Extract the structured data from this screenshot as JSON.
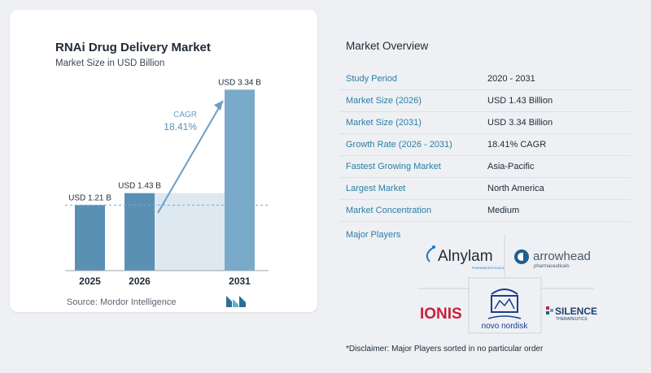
{
  "chart_data": {
    "type": "bar",
    "title": "RNAi Drug Delivery Market",
    "subtitle": "Market Size in USD Billion",
    "categories": [
      "2025",
      "2026",
      "2031"
    ],
    "values": [
      1.21,
      1.43,
      3.34
    ],
    "data_labels": [
      "USD 1.21 B",
      "USD 1.43 B",
      "USD 3.34 B"
    ],
    "cagr_label": "CAGR",
    "cagr_value": "18.41%",
    "ylim": [
      0,
      3.6
    ],
    "grid": false,
    "colors": {
      "bar_dark": "#5a90b3",
      "bar_light": "#7aaac9",
      "shade": "#dde8f1",
      "arrow": "#6b9fc4"
    }
  },
  "source": "Source:  Mordor Intelligence",
  "overview": {
    "title": "Market Overview",
    "rows": [
      {
        "label": "Study Period",
        "value": "2020 - 2031"
      },
      {
        "label": "Market Size (2026)",
        "value": "USD 1.43 Billion"
      },
      {
        "label": "Market Size (2031)",
        "value": "USD 3.34 Billion"
      },
      {
        "label": "Growth Rate (2026 - 2031)",
        "value": "18.41% CAGR"
      },
      {
        "label": "Fastest Growing Market",
        "value": "Asia-Pacific"
      },
      {
        "label": "Largest Market",
        "value": "North America"
      },
      {
        "label": "Market Concentration",
        "value": "Medium"
      }
    ]
  },
  "players": {
    "label": "Major Players",
    "logos": {
      "alnylam": "Alnylam",
      "alnylam_sub": "PHARMACEUTICALS",
      "arrowhead": "arrowhead",
      "arrowhead_sub": "pharmaceuticals",
      "ionis": "IONIS",
      "novo": "novo nordisk",
      "silence": "SILENCE",
      "silence_sub": "THERAPEUTICS"
    }
  },
  "disclaimer": "*Disclaimer: Major Players sorted in no particular order"
}
